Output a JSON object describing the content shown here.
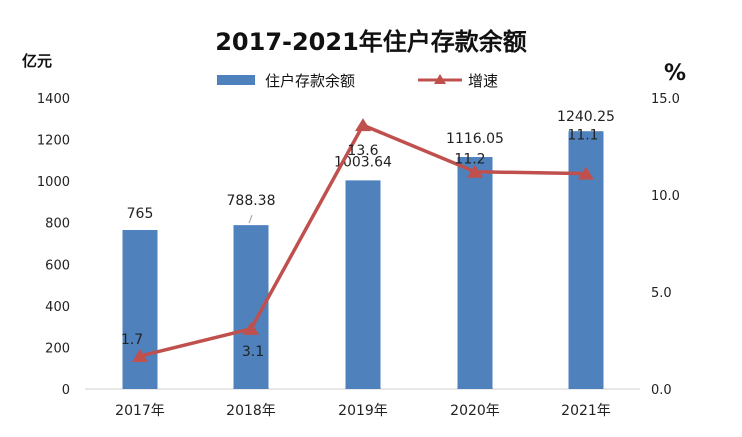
{
  "chart_data": {
    "type": "bar+line",
    "title": "2017-2021年住户存款余额",
    "categories": [
      "2017年",
      "2018年",
      "2019年",
      "2020年",
      "2021年"
    ],
    "series": [
      {
        "name": "住户存款余额",
        "type": "bar",
        "axis": "left",
        "color": "#4F81BD",
        "values": [
          765,
          788.38,
          1003.64,
          1116.05,
          1240.25
        ],
        "labels": [
          "765",
          "788.38",
          "1003.64",
          "1116.05",
          "1240.25"
        ]
      },
      {
        "name": "增速",
        "type": "line",
        "axis": "right",
        "color": "#C0504D",
        "marker": "triangle",
        "values": [
          1.7,
          3.1,
          13.6,
          11.2,
          11.1
        ],
        "labels": [
          "1.7",
          "3.1",
          "13.6",
          "11.2",
          "11.1"
        ]
      }
    ],
    "left_axis": {
      "unit": "亿元",
      "ylim": [
        0,
        1400
      ],
      "ticks": [
        "0",
        "200",
        "400",
        "600",
        "800",
        "1000",
        "1200",
        "1400"
      ]
    },
    "right_axis": {
      "unit": "%",
      "ylim": [
        0,
        15
      ],
      "ticks": [
        "0.0",
        "5.0",
        "10.0",
        "15.0"
      ]
    },
    "legend": {
      "position": "top",
      "items": [
        "住户存款余额",
        "增速"
      ]
    },
    "grid": false
  }
}
